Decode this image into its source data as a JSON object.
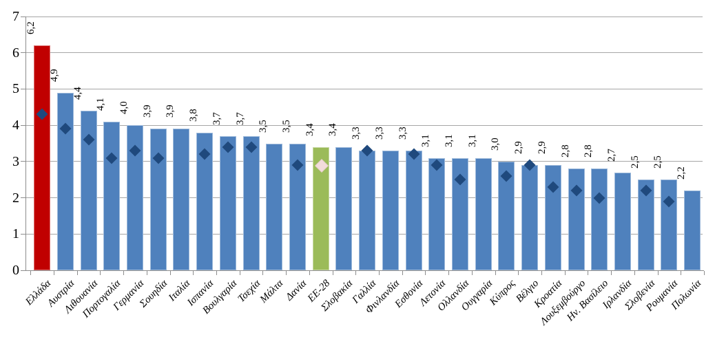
{
  "chart_data": {
    "type": "bar",
    "title": "",
    "xlabel": "",
    "ylabel": "",
    "ylim": [
      0,
      7
    ],
    "yticks": [
      0,
      1,
      2,
      3,
      4,
      5,
      6,
      7
    ],
    "grid": true,
    "legend": "none",
    "decimal_separator": ",",
    "categories": [
      "Ελλάδα",
      "Αυστρία",
      "Λιθουανία",
      "Πορτογαλία",
      "Γερμανία",
      "Σουηδία",
      "Ιταλία",
      "Ισπανία",
      "Βουλγαρία",
      "Τσεχία",
      "Μάλτα",
      "Δανία",
      "ΕΕ-28",
      "Σλοβακία",
      "Γαλλία",
      "Φινλανδία",
      "Εσθονία",
      "Λετονία",
      "Ολλανδία",
      "Ουγγαρία",
      "Κύπρος",
      "Βέλγιο",
      "Κροατία",
      "Λουξεμβούργο",
      "Ην. Βασίλειο",
      "Ιρλανδία",
      "Σλοβενία",
      "Ρουμανία",
      "Πολωνία"
    ],
    "series": [
      {
        "name": "bar-values",
        "type": "bar",
        "values": [
          6.2,
          4.9,
          4.4,
          4.1,
          4.0,
          3.9,
          3.9,
          3.8,
          3.7,
          3.7,
          3.5,
          3.5,
          3.4,
          3.4,
          3.3,
          3.3,
          3.3,
          3.1,
          3.1,
          3.1,
          3.0,
          2.9,
          2.9,
          2.8,
          2.8,
          2.7,
          2.5,
          2.5,
          2.2
        ],
        "data_labels": [
          "6,2",
          "4,9",
          "4,4",
          "4,1",
          "4,0",
          "3,9",
          "3,9",
          "3,8",
          "3,7",
          "3,7",
          "3,5",
          "3,5",
          "3,4",
          "3,4",
          "3,3",
          "3,3",
          "3,3",
          "3,1",
          "3,1",
          "3,1",
          "3,0",
          "2,9",
          "2,9",
          "2,8",
          "2,8",
          "2,7",
          "2,5",
          "2,5",
          "2,2"
        ]
      },
      {
        "name": "diamond-markers",
        "type": "scatter",
        "marker": "diamond",
        "values": [
          4.3,
          3.9,
          3.6,
          3.1,
          3.3,
          3.1,
          null,
          3.2,
          3.4,
          3.4,
          null,
          2.9,
          2.9,
          null,
          3.3,
          null,
          3.2,
          2.9,
          2.5,
          null,
          2.6,
          2.9,
          2.3,
          2.2,
          2.0,
          null,
          2.2,
          1.9,
          null
        ]
      }
    ],
    "special_bars": [
      {
        "category": "Ελλάδα",
        "color": "#c00000"
      },
      {
        "category": "ΕΕ-28",
        "color": "#9bbb59",
        "marker_color": "#f2dcdb"
      }
    ]
  },
  "colors": {
    "bar_default": "#4f81bd",
    "bar_red": "#c00000",
    "bar_green": "#9bbb59",
    "marker_dark": "#1f497d",
    "marker_light": "#f2dcdb",
    "gridline": "#a6a6a6",
    "axis": "#8c8c8c",
    "text": "#000000"
  }
}
